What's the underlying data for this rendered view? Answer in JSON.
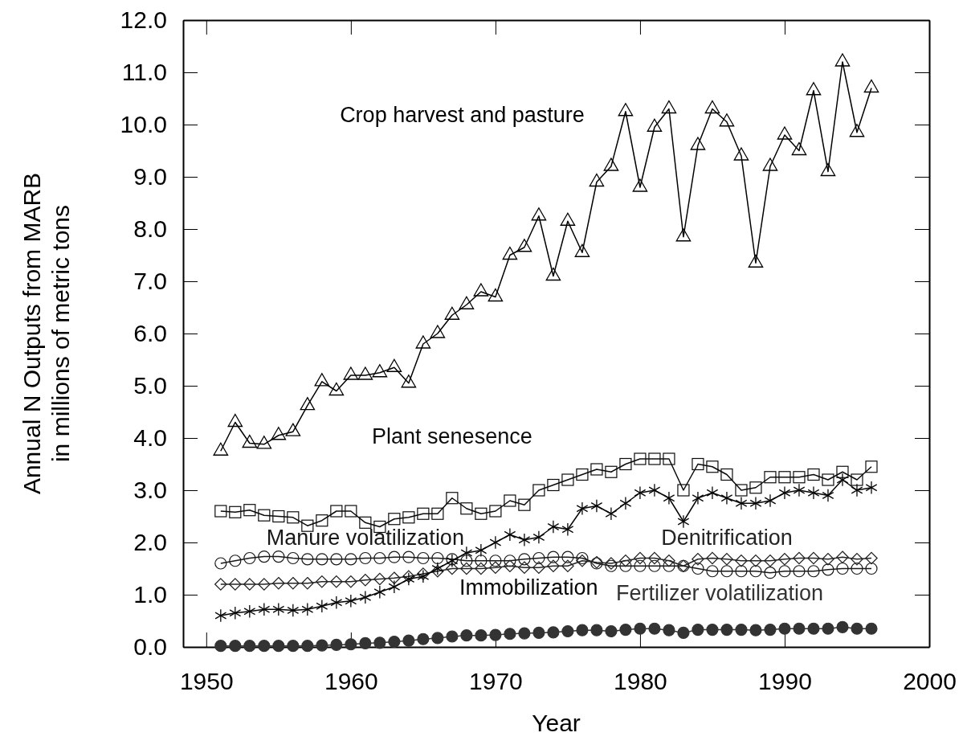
{
  "chart_data": {
    "type": "line",
    "xlabel": "Year",
    "ylabel": "Annual N Outputs from MARB\nin millions of metric tons",
    "xlim": [
      1948.4,
      2000
    ],
    "xticks": [
      1950,
      1960,
      1970,
      1980,
      1990,
      2000
    ],
    "ylim": [
      0,
      12
    ],
    "yticks": [
      {
        "value": 0,
        "label": "0.0"
      },
      {
        "value": 1,
        "label": "1.0"
      },
      {
        "value": 2,
        "label": "2.0"
      },
      {
        "value": 3,
        "label": "3.0"
      },
      {
        "value": 4,
        "label": "4.0"
      },
      {
        "value": 5,
        "label": "5.0"
      },
      {
        "value": 6,
        "label": "6.0"
      },
      {
        "value": 7,
        "label": "7.0"
      },
      {
        "value": 8,
        "label": "8.0"
      },
      {
        "value": 9,
        "label": "9.0"
      },
      {
        "value": 10,
        "label": "10.0"
      },
      {
        "value": 11,
        "label": "11.0"
      },
      {
        "value": 12,
        "label": "12.0"
      }
    ],
    "grid": false,
    "line_style": "solid",
    "x": [
      1951,
      1952,
      1953,
      1954,
      1955,
      1956,
      1957,
      1958,
      1959,
      1960,
      1961,
      1962,
      1963,
      1964,
      1965,
      1966,
      1967,
      1968,
      1969,
      1970,
      1971,
      1972,
      1973,
      1974,
      1975,
      1976,
      1977,
      1978,
      1979,
      1980,
      1981,
      1982,
      1983,
      1984,
      1985,
      1986,
      1987,
      1988,
      1989,
      1990,
      1991,
      1992,
      1993,
      1994,
      1995,
      1996
    ],
    "series": [
      {
        "name": "Crop harvest and pasture",
        "color": "#000000",
        "marker": "triangle",
        "values": [
          3.75,
          4.3,
          3.9,
          3.88,
          4.05,
          4.12,
          4.62,
          5.08,
          4.9,
          5.2,
          5.2,
          5.25,
          5.35,
          5.05,
          5.8,
          6.0,
          6.35,
          6.55,
          6.8,
          6.7,
          7.5,
          7.65,
          8.25,
          7.1,
          8.15,
          7.55,
          8.9,
          9.2,
          10.25,
          8.8,
          9.95,
          10.3,
          7.85,
          9.6,
          10.3,
          10.05,
          9.4,
          7.35,
          9.2,
          9.8,
          9.5,
          10.65,
          9.1,
          11.2,
          9.85,
          10.7
        ]
      },
      {
        "name": "Plant senesence",
        "color": "#0c0c0c",
        "marker": "square",
        "values": [
          2.6,
          2.58,
          2.62,
          2.52,
          2.5,
          2.48,
          2.32,
          2.42,
          2.6,
          2.6,
          2.38,
          2.3,
          2.45,
          2.48,
          2.55,
          2.55,
          2.85,
          2.65,
          2.55,
          2.6,
          2.8,
          2.72,
          3.0,
          3.1,
          3.2,
          3.3,
          3.4,
          3.35,
          3.5,
          3.6,
          3.6,
          3.6,
          3.0,
          3.5,
          3.45,
          3.3,
          3.0,
          3.05,
          3.25,
          3.25,
          3.25,
          3.3,
          3.2,
          3.35,
          3.2,
          3.45
        ]
      },
      {
        "name": "Manure volatilization",
        "color": "#181818",
        "marker": "circle",
        "values": [
          1.6,
          1.65,
          1.7,
          1.73,
          1.73,
          1.7,
          1.68,
          1.68,
          1.68,
          1.68,
          1.7,
          1.7,
          1.72,
          1.72,
          1.7,
          1.7,
          1.68,
          1.65,
          1.65,
          1.65,
          1.65,
          1.68,
          1.7,
          1.72,
          1.72,
          1.7,
          1.6,
          1.55,
          1.55,
          1.55,
          1.55,
          1.55,
          1.55,
          1.5,
          1.45,
          1.45,
          1.45,
          1.45,
          1.42,
          1.45,
          1.45,
          1.45,
          1.48,
          1.5,
          1.5,
          1.5
        ]
      },
      {
        "name": "Denitrification",
        "color": "#242424",
        "marker": "diamond",
        "values": [
          1.2,
          1.2,
          1.2,
          1.2,
          1.22,
          1.22,
          1.22,
          1.25,
          1.25,
          1.25,
          1.28,
          1.3,
          1.32,
          1.35,
          1.4,
          1.45,
          1.5,
          1.5,
          1.5,
          1.52,
          1.55,
          1.52,
          1.52,
          1.55,
          1.55,
          1.65,
          1.62,
          1.6,
          1.65,
          1.7,
          1.7,
          1.65,
          1.55,
          1.68,
          1.7,
          1.68,
          1.65,
          1.65,
          1.65,
          1.68,
          1.7,
          1.7,
          1.68,
          1.72,
          1.68,
          1.7
        ]
      },
      {
        "name": "Immobilization",
        "color": "#060606",
        "marker": "cross",
        "values": [
          0.6,
          0.65,
          0.68,
          0.72,
          0.72,
          0.7,
          0.72,
          0.78,
          0.85,
          0.88,
          0.95,
          1.05,
          1.15,
          1.3,
          1.35,
          1.5,
          1.65,
          1.8,
          1.85,
          2.0,
          2.15,
          2.05,
          2.1,
          2.3,
          2.25,
          2.65,
          2.7,
          2.55,
          2.75,
          2.95,
          3.0,
          2.85,
          2.4,
          2.85,
          2.95,
          2.85,
          2.75,
          2.75,
          2.8,
          2.95,
          3.0,
          2.95,
          2.9,
          3.2,
          3.0,
          3.05
        ]
      },
      {
        "name": "Fertilizer volatilization",
        "color": "#333333",
        "marker": "circle",
        "values": [
          0.02,
          0.02,
          0.02,
          0.02,
          0.02,
          0.02,
          0.02,
          0.03,
          0.04,
          0.05,
          0.07,
          0.08,
          0.1,
          0.12,
          0.15,
          0.17,
          0.2,
          0.22,
          0.22,
          0.23,
          0.25,
          0.26,
          0.27,
          0.28,
          0.3,
          0.32,
          0.32,
          0.3,
          0.33,
          0.35,
          0.35,
          0.32,
          0.27,
          0.33,
          0.33,
          0.33,
          0.33,
          0.32,
          0.33,
          0.35,
          0.35,
          0.35,
          0.35,
          0.38,
          0.35,
          0.35
        ]
      }
    ]
  }
}
